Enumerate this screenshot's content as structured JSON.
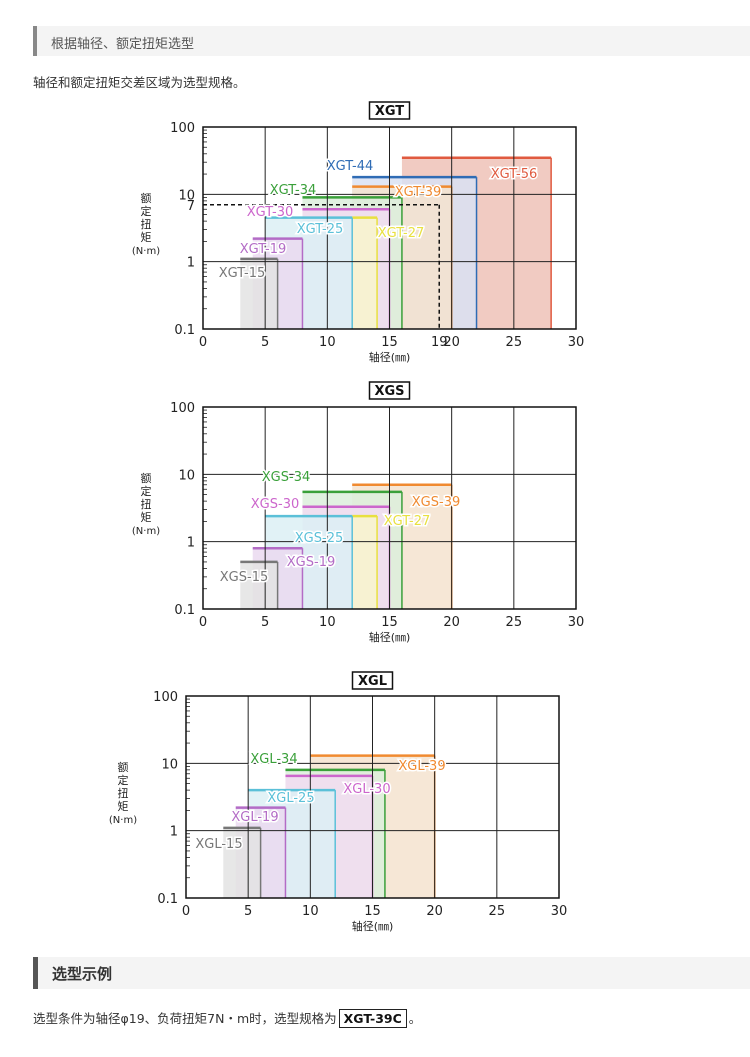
{
  "header": {
    "title": "根据轴径、额定扭矩选型"
  },
  "intro": "轴径和额定扭矩交差区域为选型规格。",
  "example_section": {
    "title": "选型示例",
    "text_before": "选型条件为轴径φ19、负荷扭矩7N・m时，选型规格为",
    "highlight": "XGT-39C",
    "text_after": "。"
  },
  "chart_data": [
    {
      "type": "area",
      "title": "XGT",
      "xlabel": "轴径(㎜)",
      "ylabel_chars": [
        "额",
        "定",
        "扭",
        "矩"
      ],
      "ylabel_unit": "(N·m)",
      "xlim": [
        0,
        30
      ],
      "ylim": [
        0.1,
        100
      ],
      "yscale": "log",
      "xticks": [
        0,
        5,
        10,
        15,
        19,
        20,
        25,
        30
      ],
      "yticks": [
        {
          "v": 0.1,
          "label": "0.1"
        },
        {
          "v": 1,
          "label": "1"
        },
        {
          "v": 7,
          "label": "7"
        },
        {
          "v": 10,
          "label": "10"
        },
        {
          "v": 100,
          "label": "100"
        }
      ],
      "marker": {
        "x": 19,
        "y": 7
      },
      "series": [
        {
          "name": "XGT-56",
          "x": [
            16,
            28
          ],
          "torque": 35,
          "color": "#e05a3f",
          "fill": "#efc2b7"
        },
        {
          "name": "XGT-44",
          "x": [
            12,
            22
          ],
          "torque": 18,
          "color": "#2f6cb5",
          "fill": "#d9e2f3"
        },
        {
          "name": "XGT-39",
          "x": [
            12,
            20
          ],
          "torque": 13,
          "color": "#f08a30",
          "fill": "#f5e3cf"
        },
        {
          "name": "XGT-34",
          "x": [
            8,
            16
          ],
          "torque": 9,
          "color": "#3aa03a",
          "fill": "#dcefdc"
        },
        {
          "name": "XGT-30",
          "x": [
            8,
            15
          ],
          "torque": 6,
          "color": "#cc66cc",
          "fill": "#f1dcf1"
        },
        {
          "name": "XGT-27",
          "x": [
            12,
            14
          ],
          "torque": 4.5,
          "color": "#e8e040",
          "fill": "#f8f6cc"
        },
        {
          "name": "XGT-25",
          "x": [
            5,
            12
          ],
          "torque": 4.5,
          "color": "#5bc0d8",
          "fill": "#dcf0f5"
        },
        {
          "name": "XGT-19",
          "x": [
            4,
            8
          ],
          "torque": 2.2,
          "color": "#b36cc6",
          "fill": "#ead9f0"
        },
        {
          "name": "XGT-15",
          "x": [
            3,
            6
          ],
          "torque": 1.1,
          "color": "#777777",
          "fill": "#e3e3e3"
        }
      ]
    },
    {
      "type": "area",
      "title": "XGS",
      "xlabel": "轴径(㎜)",
      "ylabel_chars": [
        "额",
        "定",
        "扭",
        "矩"
      ],
      "ylabel_unit": "(N·m)",
      "xlim": [
        0,
        30
      ],
      "ylim": [
        0.1,
        100
      ],
      "yscale": "log",
      "xticks": [
        0,
        5,
        10,
        15,
        20,
        25,
        30
      ],
      "yticks": [
        {
          "v": 0.1,
          "label": "0.1"
        },
        {
          "v": 1,
          "label": "1"
        },
        {
          "v": 10,
          "label": "10"
        },
        {
          "v": 100,
          "label": "100"
        }
      ],
      "series": [
        {
          "name": "XGS-39",
          "x": [
            12,
            20
          ],
          "torque": 7,
          "color": "#f08a30",
          "fill": "#f5e3cf"
        },
        {
          "name": "XGS-34",
          "x": [
            8,
            16
          ],
          "torque": 5.5,
          "color": "#3aa03a",
          "fill": "#dcefdc"
        },
        {
          "name": "XGS-30",
          "x": [
            8,
            15
          ],
          "torque": 3.3,
          "color": "#cc66cc",
          "fill": "#f1dcf1"
        },
        {
          "name": "XGT-27",
          "x": [
            12,
            14
          ],
          "torque": 2.4,
          "color": "#e8e040",
          "fill": "#f8f6cc"
        },
        {
          "name": "XGS-25",
          "x": [
            5,
            12
          ],
          "torque": 2.4,
          "color": "#5bc0d8",
          "fill": "#dcf0f5"
        },
        {
          "name": "XGS-19",
          "x": [
            4,
            8
          ],
          "torque": 0.8,
          "color": "#b36cc6",
          "fill": "#ead9f0"
        },
        {
          "name": "XGS-15",
          "x": [
            3,
            6
          ],
          "torque": 0.5,
          "color": "#777777",
          "fill": "#e3e3e3"
        }
      ]
    },
    {
      "type": "area",
      "title": "XGL",
      "xlabel": "轴径(㎜)",
      "ylabel_chars": [
        "额",
        "定",
        "扭",
        "矩"
      ],
      "ylabel_unit": "(N·m)",
      "xlim": [
        0,
        30
      ],
      "ylim": [
        0.1,
        100
      ],
      "yscale": "log",
      "xticks": [
        0,
        5,
        10,
        15,
        20,
        25,
        30
      ],
      "yticks": [
        {
          "v": 0.1,
          "label": "0.1"
        },
        {
          "v": 1,
          "label": "1"
        },
        {
          "v": 10,
          "label": "10"
        },
        {
          "v": 100,
          "label": "100"
        }
      ],
      "series": [
        {
          "name": "XGL-39",
          "x": [
            10,
            20
          ],
          "torque": 13,
          "color": "#f08a30",
          "fill": "#f5e3cf"
        },
        {
          "name": "XGL-34",
          "x": [
            8,
            16
          ],
          "torque": 8,
          "color": "#3aa03a",
          "fill": "#dcefdc"
        },
        {
          "name": "XGL-30",
          "x": [
            8,
            15
          ],
          "torque": 6.5,
          "color": "#cc66cc",
          "fill": "#f1dcf1"
        },
        {
          "name": "XGL-25",
          "x": [
            5,
            12
          ],
          "torque": 4,
          "color": "#5bc0d8",
          "fill": "#dcf0f5"
        },
        {
          "name": "XGL-19",
          "x": [
            4,
            8
          ],
          "torque": 2.2,
          "color": "#b36cc6",
          "fill": "#ead9f0"
        },
        {
          "name": "XGL-15",
          "x": [
            3,
            6
          ],
          "torque": 1.1,
          "color": "#777777",
          "fill": "#e3e3e3"
        }
      ]
    }
  ]
}
